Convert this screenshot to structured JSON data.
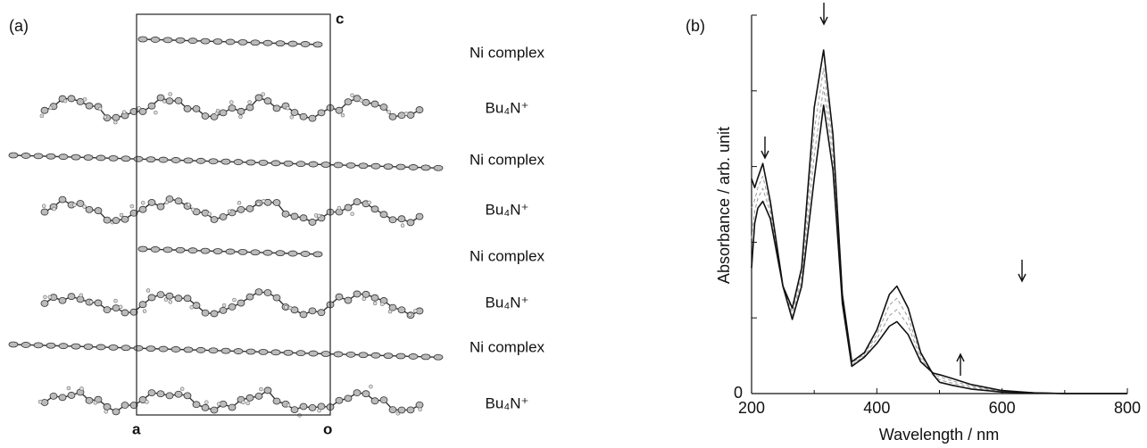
{
  "panel_a": {
    "label": "(a)",
    "axes": [
      "c",
      "a",
      "o"
    ],
    "layers": [
      "Ni complex",
      "Bu₄N⁺",
      "Ni complex",
      "Bu₄N⁺",
      "Ni complex",
      "Bu₄N⁺",
      "Ni complex",
      "Bu₄N⁺"
    ]
  },
  "chart_data": {
    "type": "line",
    "panel_label": "(b)",
    "xlabel": "Wavelength / nm",
    "ylabel": "Absorbance / arb. unit",
    "x": [
      200,
      205,
      210,
      218,
      230,
      250,
      265,
      280,
      300,
      315,
      330,
      345,
      360,
      380,
      400,
      420,
      432,
      450,
      470,
      490,
      500,
      520,
      550,
      600,
      650,
      700,
      800
    ],
    "xlim": [
      200,
      800
    ],
    "xticks": [
      200,
      400,
      600,
      800
    ],
    "x_unlabeled_ticks": [
      300,
      500,
      700
    ],
    "ylim": [
      0,
      5
    ],
    "yticks": [
      0
    ],
    "y_unlabeled_ticks": [
      1,
      2,
      3,
      4,
      5
    ],
    "series": [
      {
        "color": "#999999",
        "dash": true,
        "values": [
          2.45,
          2.56,
          2.72,
          2.87,
          2.46,
          1.42,
          1.08,
          1.58,
          3.47,
          4.3,
          3.26,
          1.27,
          0.4,
          0.52,
          0.78,
          1.17,
          1.26,
          1.01,
          0.5,
          0.26,
          0.18,
          0.14,
          0.08,
          0.03,
          0.01,
          0,
          0
        ]
      },
      {
        "color": "#999999",
        "dash": true,
        "values": [
          2.05,
          2.41,
          2.58,
          2.71,
          2.39,
          1.42,
          1.03,
          1.5,
          3.15,
          4.05,
          3.11,
          1.23,
          0.38,
          0.5,
          0.72,
          1.03,
          1.11,
          0.9,
          0.46,
          0.26,
          0.22,
          0.17,
          0.1,
          0.03,
          0.01,
          0,
          0
        ]
      },
      {
        "color": "#111111",
        "dash": false,
        "values": [
          2.84,
          2.72,
          2.85,
          3.04,
          2.54,
          1.42,
          1.13,
          1.66,
          3.78,
          4.54,
          3.42,
          1.31,
          0.42,
          0.54,
          0.84,
          1.31,
          1.42,
          1.13,
          0.54,
          0.25,
          0.15,
          0.11,
          0.06,
          0.02,
          0.01,
          0,
          0
        ]
      },
      {
        "color": "#111111",
        "dash": false,
        "values": [
          1.66,
          2.25,
          2.45,
          2.54,
          2.31,
          1.42,
          0.98,
          1.42,
          2.84,
          3.81,
          2.95,
          1.19,
          0.36,
          0.48,
          0.66,
          0.89,
          0.95,
          0.78,
          0.42,
          0.27,
          0.25,
          0.2,
          0.12,
          0.04,
          0.01,
          0,
          0
        ]
      }
    ]
  }
}
